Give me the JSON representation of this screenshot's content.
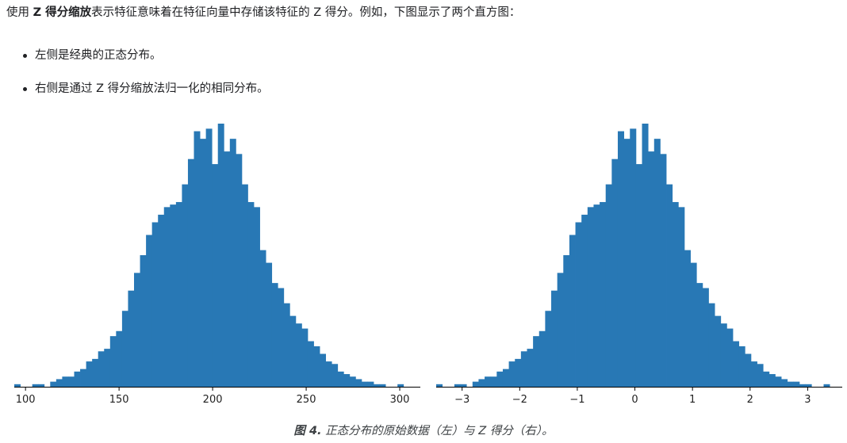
{
  "intro": {
    "prefix": "使用 ",
    "term": "Z 得分缩放",
    "rest": "表示特征意味着在特征向量中存储该特征的 Z 得分。例如，下图显示了两个直方图："
  },
  "bullets": [
    "左侧是经典的正态分布。",
    "右侧是通过 Z 得分缩放法归一化的相同分布。"
  ],
  "caption": {
    "label": "图 4.",
    "text": " 正态分布的原始数据（左）与 Z 得分（右）。"
  },
  "colors": {
    "bar": "#2878b5",
    "axis": "#000000"
  },
  "chart_data": [
    {
      "type": "bar",
      "chart": "histogram",
      "xlabel": "",
      "ylabel": "",
      "xlim": [
        94,
        311
      ],
      "xticks": [
        100,
        150,
        200,
        250,
        300
      ],
      "xtick_labels": [
        "100",
        "150",
        "200",
        "250",
        "300"
      ],
      "y_axis_visible": false,
      "grid": false,
      "bin_start": 94.0,
      "bin_width": 3.2,
      "values": [
        1,
        0,
        0,
        1,
        1,
        0,
        2,
        3,
        4,
        4,
        6,
        7,
        10,
        11,
        14,
        15,
        20,
        22,
        30,
        38,
        45,
        52,
        60,
        65,
        68,
        71,
        72,
        73,
        80,
        90,
        101,
        98,
        102,
        88,
        104,
        93,
        98,
        92,
        80,
        73,
        71,
        54,
        49,
        41,
        39,
        33,
        28,
        25,
        23,
        18,
        16,
        13,
        10,
        9,
        6,
        5,
        4,
        3,
        2,
        2,
        1,
        1,
        0,
        0,
        1,
        0,
        0
      ]
    },
    {
      "type": "bar",
      "chart": "histogram",
      "xlabel": "",
      "ylabel": "",
      "xlim": [
        -3.45,
        3.6
      ],
      "xticks": [
        -3,
        -2,
        -1,
        0,
        1,
        2,
        3
      ],
      "xtick_labels": [
        "−3",
        "−2",
        "−1",
        "0",
        "1",
        "2",
        "3"
      ],
      "y_axis_visible": false,
      "grid": false,
      "bin_start": -3.45,
      "bin_width": 0.1051,
      "values": [
        1,
        0,
        0,
        1,
        1,
        0,
        2,
        3,
        4,
        4,
        6,
        7,
        10,
        11,
        14,
        15,
        20,
        22,
        30,
        38,
        45,
        52,
        60,
        65,
        68,
        71,
        72,
        73,
        80,
        90,
        101,
        98,
        102,
        88,
        104,
        93,
        98,
        92,
        80,
        73,
        71,
        54,
        49,
        41,
        39,
        33,
        28,
        25,
        23,
        18,
        16,
        13,
        10,
        9,
        6,
        5,
        4,
        3,
        2,
        2,
        1,
        1,
        0,
        0,
        1,
        0,
        0
      ]
    }
  ]
}
